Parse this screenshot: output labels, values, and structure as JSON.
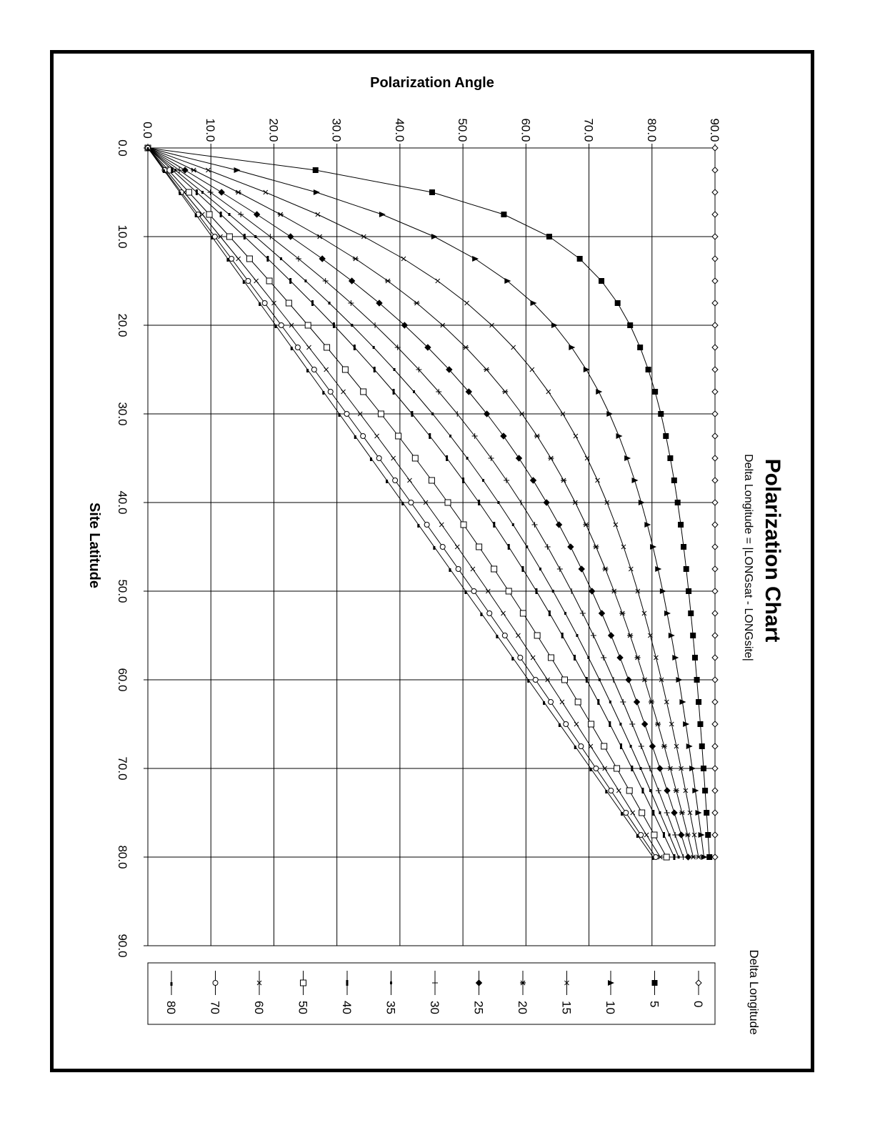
{
  "chart_data": {
    "type": "line",
    "title": "Polarization Chart",
    "subtitle": "Delta Longitude = |LONGsat - LONGsite|",
    "xlabel": "Site Latitude",
    "ylabel": "Polarization Angle",
    "xlim": [
      0,
      90
    ],
    "ylim": [
      0,
      90
    ],
    "x_ticks": [
      "0.0",
      "10.0",
      "20.0",
      "30.0",
      "40.0",
      "50.0",
      "60.0",
      "70.0",
      "80.0",
      "90.0"
    ],
    "y_ticks": [
      "0.0",
      "10.0",
      "20.0",
      "30.0",
      "40.0",
      "50.0",
      "60.0",
      "70.0",
      "80.0",
      "90.0"
    ],
    "grid": true,
    "orientation": "rotated 90 degrees clockwise on the page",
    "x": [
      0,
      2.5,
      5,
      7.5,
      10,
      12.5,
      15,
      17.5,
      20,
      22.5,
      25,
      27.5,
      30,
      32.5,
      35,
      37.5,
      40,
      42.5,
      45,
      47.5,
      50,
      52.5,
      55,
      57.5,
      60,
      62.5,
      65,
      67.5,
      70,
      72.5,
      75,
      77.5,
      80
    ],
    "legend_title": "Delta Longitude",
    "legend_placement": "right",
    "series": [
      {
        "name": "0",
        "marker": "diamond-open"
      },
      {
        "name": "5",
        "marker": "square-filled"
      },
      {
        "name": "10",
        "marker": "triangle-filled"
      },
      {
        "name": "15",
        "marker": "x"
      },
      {
        "name": "20",
        "marker": "star"
      },
      {
        "name": "25",
        "marker": "diamond-filled"
      },
      {
        "name": "30",
        "marker": "plus"
      },
      {
        "name": "35",
        "marker": "small-bar"
      },
      {
        "name": "40",
        "marker": "bar"
      },
      {
        "name": "50",
        "marker": "square-open"
      },
      {
        "name": "60",
        "marker": "x"
      },
      {
        "name": "70",
        "marker": "circle-open"
      },
      {
        "name": "80",
        "marker": "half-bar"
      }
    ]
  }
}
